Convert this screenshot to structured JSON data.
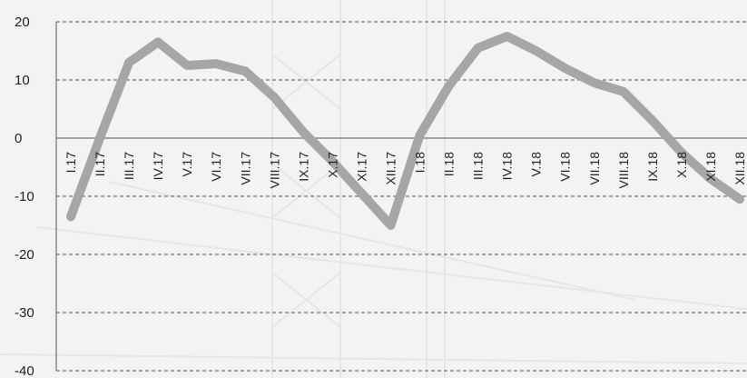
{
  "chart_data": {
    "type": "line",
    "title": "",
    "xlabel": "",
    "ylabel": "",
    "categories": [
      "I.17",
      "II.17",
      "III.17",
      "IV.17",
      "V.17",
      "VI.17",
      "VII.17",
      "VIII.17",
      "IX.17",
      "X.17",
      "XI.17",
      "XII.17",
      "I.18",
      "II.18",
      "III.18",
      "IV.18",
      "V.18",
      "VI.18",
      "VII.18",
      "VIII.18",
      "IX.18",
      "X.18",
      "XI.18",
      "XII.18"
    ],
    "series": [
      {
        "values": [
          -13.5,
          0,
          13,
          16.5,
          12.5,
          12.8,
          11.5,
          7,
          1,
          -4,
          -9.5,
          -15,
          0.5,
          9,
          15.5,
          17.5,
          15,
          12,
          9.5,
          8,
          3,
          -2.5,
          -7,
          -10.5
        ],
        "color": "#a6a6a6"
      }
    ],
    "ylim": [
      -40,
      20
    ],
    "yticks": [
      20,
      10,
      0,
      -10,
      -20,
      -30,
      -40
    ],
    "grid": true,
    "legend": "none"
  }
}
